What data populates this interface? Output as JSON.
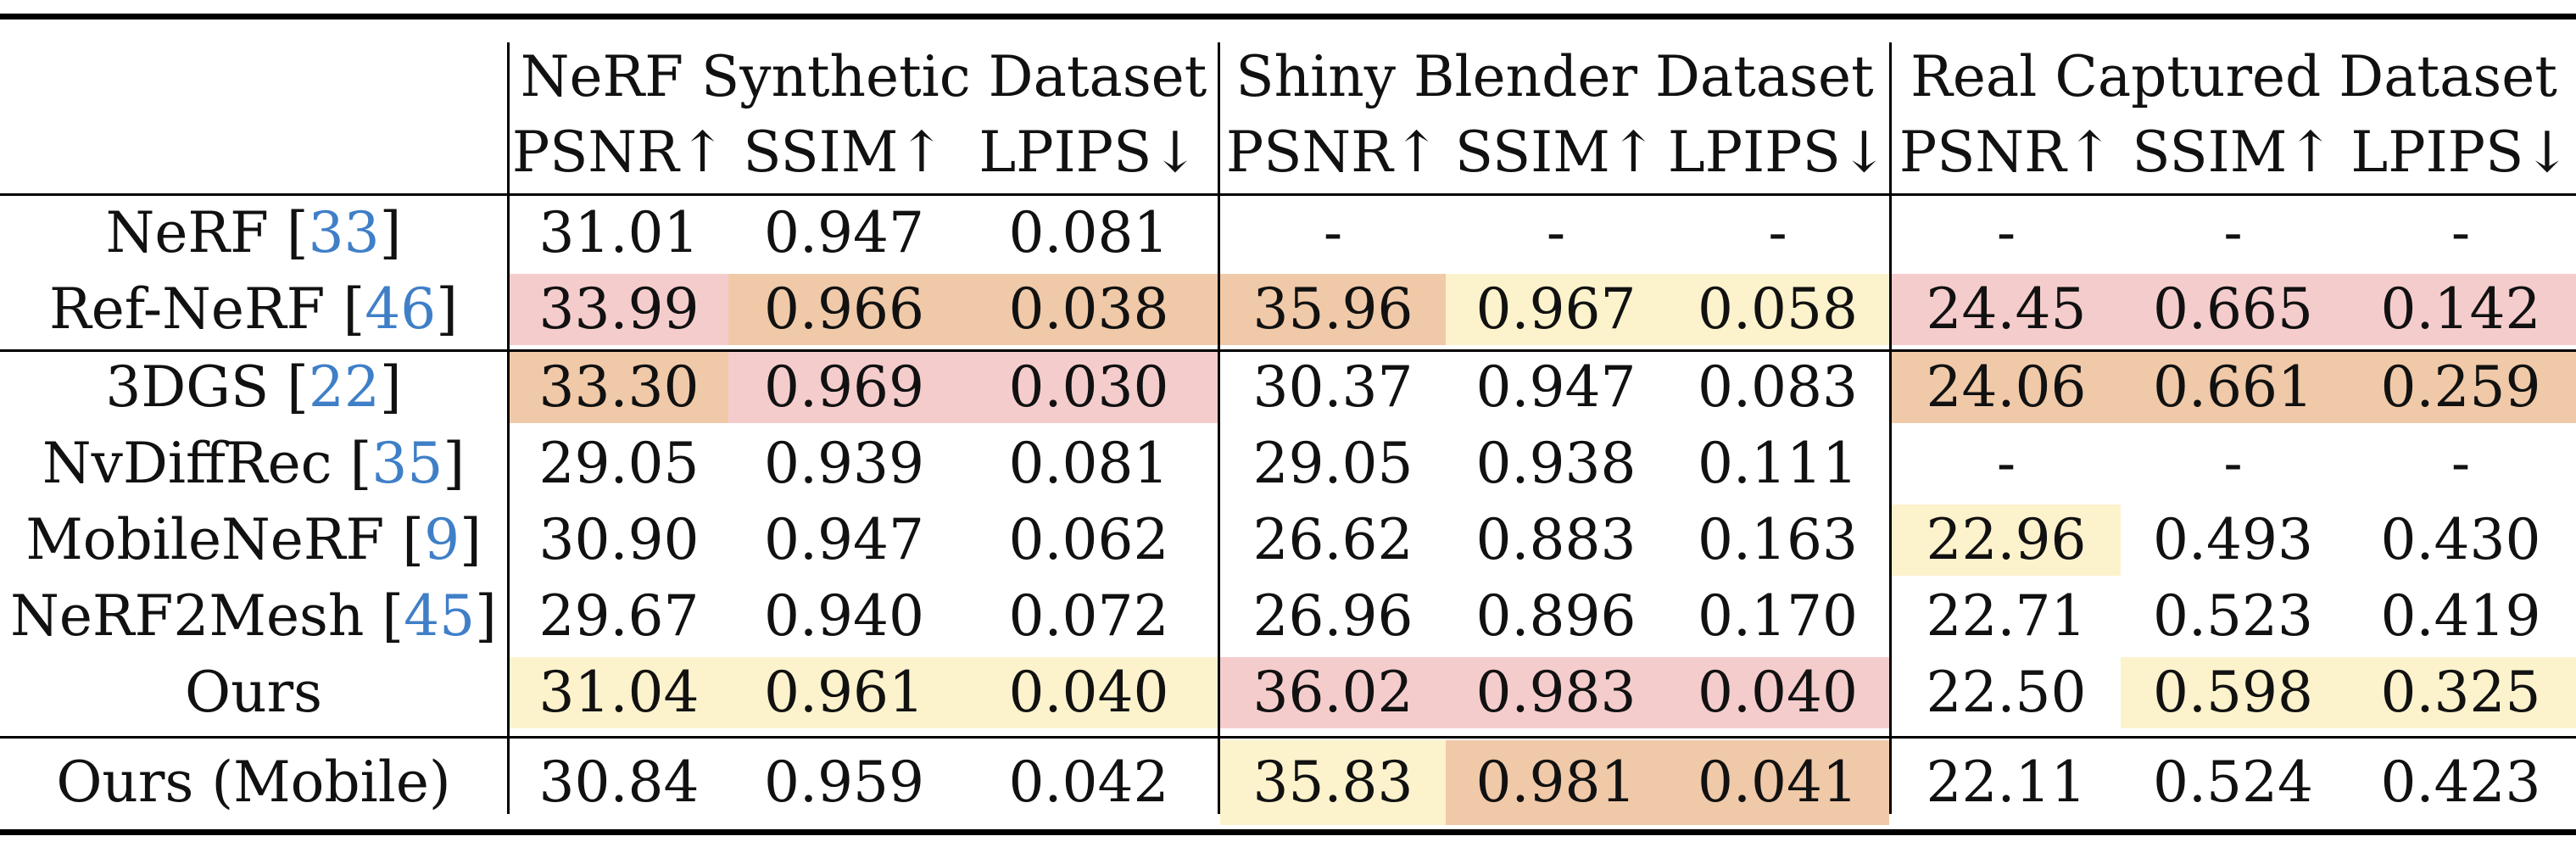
{
  "datasets": [
    {
      "name": "NeRF Synthetic Dataset"
    },
    {
      "name": "Shiny Blender Dataset"
    },
    {
      "name": "Real Captured Dataset"
    }
  ],
  "metrics": [
    "PSNR↑",
    "SSIM↑",
    "LPIPS↓",
    "PSNR↑",
    "SSIM↑",
    "LPIPS↓",
    "PSNR↑",
    "SSIM↑",
    "LPIPS↓"
  ],
  "highlight_colors": {
    "first": "#f5cccc",
    "second": "#f0c9a8",
    "third": "#fcf2cc"
  },
  "rows": [
    {
      "method": "NeRF",
      "ref": "33",
      "values": [
        "31.01",
        "0.947",
        "0.081",
        "-",
        "-",
        "-",
        "-",
        "-",
        "-"
      ],
      "rank": [
        0,
        0,
        0,
        0,
        0,
        0,
        0,
        0,
        0
      ]
    },
    {
      "method": "Ref-NeRF",
      "ref": "46",
      "values": [
        "33.99",
        "0.966",
        "0.038",
        "35.96",
        "0.967",
        "0.058",
        "24.45",
        "0.665",
        "0.142"
      ],
      "rank": [
        1,
        2,
        2,
        2,
        3,
        3,
        1,
        1,
        1
      ]
    },
    {
      "method": "3DGS",
      "ref": "22",
      "values": [
        "33.30",
        "0.969",
        "0.030",
        "30.37",
        "0.947",
        "0.083",
        "24.06",
        "0.661",
        "0.259"
      ],
      "rank": [
        2,
        1,
        1,
        0,
        0,
        0,
        2,
        2,
        2
      ]
    },
    {
      "method": "NvDiffRec",
      "ref": "35",
      "values": [
        "29.05",
        "0.939",
        "0.081",
        "29.05",
        "0.938",
        "0.111",
        "-",
        "-",
        "-"
      ],
      "rank": [
        0,
        0,
        0,
        0,
        0,
        0,
        0,
        0,
        0
      ]
    },
    {
      "method": "MobileNeRF",
      "ref": "9",
      "values": [
        "30.90",
        "0.947",
        "0.062",
        "26.62",
        "0.883",
        "0.163",
        "22.96",
        "0.493",
        "0.430"
      ],
      "rank": [
        0,
        0,
        0,
        0,
        0,
        0,
        3,
        0,
        0
      ]
    },
    {
      "method": "NeRF2Mesh",
      "ref": "45",
      "values": [
        "29.67",
        "0.940",
        "0.072",
        "26.96",
        "0.896",
        "0.170",
        "22.71",
        "0.523",
        "0.419"
      ],
      "rank": [
        0,
        0,
        0,
        0,
        0,
        0,
        0,
        0,
        0
      ]
    },
    {
      "method": "Ours",
      "ref": "",
      "values": [
        "31.04",
        "0.961",
        "0.040",
        "36.02",
        "0.983",
        "0.040",
        "22.50",
        "0.598",
        "0.325"
      ],
      "rank": [
        3,
        3,
        3,
        1,
        1,
        1,
        0,
        3,
        3
      ]
    },
    {
      "method": "Ours (Mobile)",
      "ref": "",
      "values": [
        "30.84",
        "0.959",
        "0.042",
        "35.83",
        "0.981",
        "0.041",
        "22.11",
        "0.524",
        "0.423"
      ],
      "rank": [
        0,
        0,
        0,
        3,
        2,
        2,
        0,
        0,
        0
      ]
    }
  ]
}
